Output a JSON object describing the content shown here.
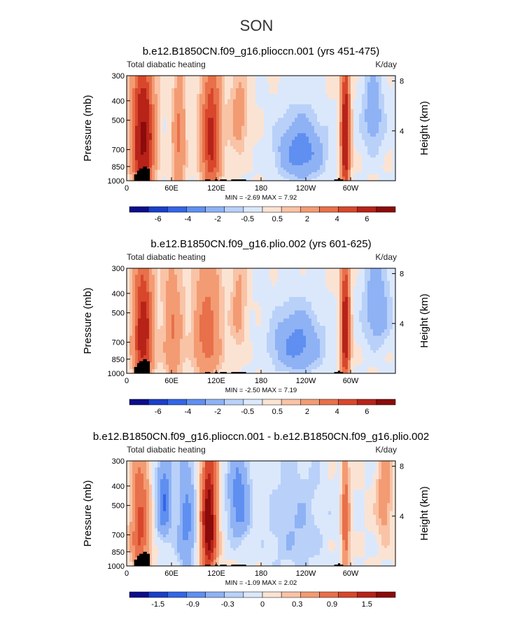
{
  "figure": {
    "title": "SON",
    "panel_label": "Total diabatic heating",
    "units": "K/day",
    "ylabel": "Pressure (mb)",
    "ylabel_right": "Height (km)"
  },
  "chart_data": [
    {
      "type": "heatmap",
      "title": "b.e12.B1850CN.f09_g16.plioccn.001 (yrs 451-475)",
      "variable": "Total diabatic heating",
      "units": "K/day",
      "xlabel": "",
      "ylabel": "Pressure (mb)",
      "ylabel_right": "Height (km)",
      "x_ticks": [
        "0",
        "60E",
        "120E",
        "180",
        "120W",
        "60W"
      ],
      "x_tick_values": [
        0,
        60,
        120,
        180,
        240,
        300
      ],
      "xlim": [
        0,
        360
      ],
      "y_ticks": [
        "300",
        "400",
        "500",
        "700",
        "850",
        "1000"
      ],
      "y_tick_values": [
        300,
        400,
        500,
        700,
        850,
        1000
      ],
      "ylim": [
        1000,
        300
      ],
      "height_ticks": [
        "8",
        "4"
      ],
      "height_tick_values": [
        8,
        4
      ],
      "min": "-2.69",
      "max": "7.92",
      "stats_label": "MIN =   -2.69   MAX =    7.92",
      "colorbar_labels": [
        "-6",
        "-4",
        "-2",
        "-0.5",
        "0.5",
        "2",
        "4",
        "6"
      ],
      "colorbar_colors": [
        "#0d0d8c",
        "#1a3fc9",
        "#3366e6",
        "#5f8ff0",
        "#8fb2f5",
        "#b9d1f9",
        "#dbe8fc",
        "#fbe3d3",
        "#f9c3a6",
        "#f39b73",
        "#e8704a",
        "#d8472c",
        "#b72319",
        "#8b0b0b"
      ],
      "features": [
        {
          "lon": 22,
          "halfwidth": 14,
          "amp": 6.5,
          "level": "full"
        },
        {
          "lon": 70,
          "halfwidth": 9,
          "amp": 2.2,
          "level": "full"
        },
        {
          "lon": 113,
          "halfwidth": 13,
          "amp": 4.5,
          "level": "full"
        },
        {
          "lon": 150,
          "halfwidth": 12,
          "amp": 1.5,
          "level": "upper"
        },
        {
          "lon": 233,
          "halfwidth": 30,
          "amp": -2.6,
          "level": "low"
        },
        {
          "lon": 293,
          "halfwidth": 6,
          "amp": 6.0,
          "level": "full"
        },
        {
          "lon": 330,
          "halfwidth": 15,
          "amp": -1.5,
          "level": "upper"
        }
      ]
    },
    {
      "type": "heatmap",
      "title": "b.e12.B1850CN.f09_g16.plio.002 (yrs 601-625)",
      "variable": "Total diabatic heating",
      "units": "K/day",
      "xlabel": "",
      "ylabel": "Pressure (mb)",
      "ylabel_right": "Height (km)",
      "x_ticks": [
        "0",
        "60E",
        "120E",
        "180",
        "120W",
        "60W"
      ],
      "x_tick_values": [
        0,
        60,
        120,
        180,
        240,
        300
      ],
      "xlim": [
        0,
        360
      ],
      "y_ticks": [
        "300",
        "400",
        "500",
        "700",
        "850",
        "1000"
      ],
      "y_tick_values": [
        300,
        400,
        500,
        700,
        850,
        1000
      ],
      "ylim": [
        1000,
        300
      ],
      "height_ticks": [
        "8",
        "4"
      ],
      "height_tick_values": [
        8,
        4
      ],
      "min": "-2.50",
      "max": "7.19",
      "stats_label": "MIN =   -2.50   MAX =    7.19",
      "colorbar_labels": [
        "-6",
        "-4",
        "-2",
        "-0.5",
        "0.5",
        "2",
        "4",
        "6"
      ],
      "colorbar_colors": [
        "#0d0d8c",
        "#1a3fc9",
        "#3366e6",
        "#5f8ff0",
        "#8fb2f5",
        "#b9d1f9",
        "#dbe8fc",
        "#fbe3d3",
        "#f9c3a6",
        "#f39b73",
        "#e8704a",
        "#d8472c",
        "#b72319",
        "#8b0b0b"
      ],
      "features": [
        {
          "lon": 22,
          "halfwidth": 13,
          "amp": 5.0,
          "level": "full"
        },
        {
          "lon": 62,
          "halfwidth": 13,
          "amp": 2.0,
          "level": "full"
        },
        {
          "lon": 108,
          "halfwidth": 18,
          "amp": 2.6,
          "level": "full"
        },
        {
          "lon": 150,
          "halfwidth": 10,
          "amp": 1.4,
          "level": "upper"
        },
        {
          "lon": 228,
          "halfwidth": 32,
          "amp": -2.4,
          "level": "low"
        },
        {
          "lon": 293,
          "halfwidth": 6,
          "amp": 5.5,
          "level": "full"
        },
        {
          "lon": 335,
          "halfwidth": 18,
          "amp": -1.7,
          "level": "upper"
        }
      ]
    },
    {
      "type": "heatmap",
      "title": "b.e12.B1850CN.f09_g16.plioccn.001 - b.e12.B1850CN.f09_g16.plio.002",
      "variable": "Total diabatic heating",
      "units": "K/day",
      "xlabel": "",
      "ylabel": "Pressure (mb)",
      "ylabel_right": "Height (km)",
      "x_ticks": [
        "0",
        "60E",
        "120E",
        "180",
        "120W",
        "60W"
      ],
      "x_tick_values": [
        0,
        60,
        120,
        180,
        240,
        300
      ],
      "xlim": [
        0,
        360
      ],
      "y_ticks": [
        "300",
        "400",
        "500",
        "700",
        "850",
        "1000"
      ],
      "y_tick_values": [
        300,
        400,
        500,
        700,
        850,
        1000
      ],
      "ylim": [
        1000,
        300
      ],
      "height_ticks": [
        "8",
        "4"
      ],
      "height_tick_values": [
        8,
        4
      ],
      "min": "-1.09",
      "max": "2.02",
      "stats_label": "MIN =   -1.09   MAX =   2.02",
      "colorbar_labels": [
        "-1.5",
        "-0.9",
        "-0.3",
        "0",
        "0.3",
        "0.9",
        "1.5"
      ],
      "colorbar_colors": [
        "#0d0d8c",
        "#1a3fc9",
        "#3366e6",
        "#5f8ff0",
        "#8fb2f5",
        "#b9d1f9",
        "#dbe8fc",
        "#fbe3d3",
        "#f9c3a6",
        "#f39b73",
        "#e8704a",
        "#d8472c",
        "#b72319",
        "#8b0b0b"
      ],
      "features": [
        {
          "lon": 18,
          "halfwidth": 12,
          "amp": 1.0,
          "level": "full"
        },
        {
          "lon": 50,
          "halfwidth": 10,
          "amp": -0.9,
          "level": "upper"
        },
        {
          "lon": 80,
          "halfwidth": 12,
          "amp": -0.7,
          "level": "full"
        },
        {
          "lon": 110,
          "halfwidth": 10,
          "amp": 1.9,
          "level": "full"
        },
        {
          "lon": 150,
          "halfwidth": 14,
          "amp": -0.8,
          "level": "upper"
        },
        {
          "lon": 225,
          "halfwidth": 40,
          "amp": -0.3,
          "level": "full"
        },
        {
          "lon": 293,
          "halfwidth": 5,
          "amp": 0.9,
          "level": "full"
        },
        {
          "lon": 345,
          "halfwidth": 10,
          "amp": 0.5,
          "level": "upper"
        }
      ]
    }
  ]
}
